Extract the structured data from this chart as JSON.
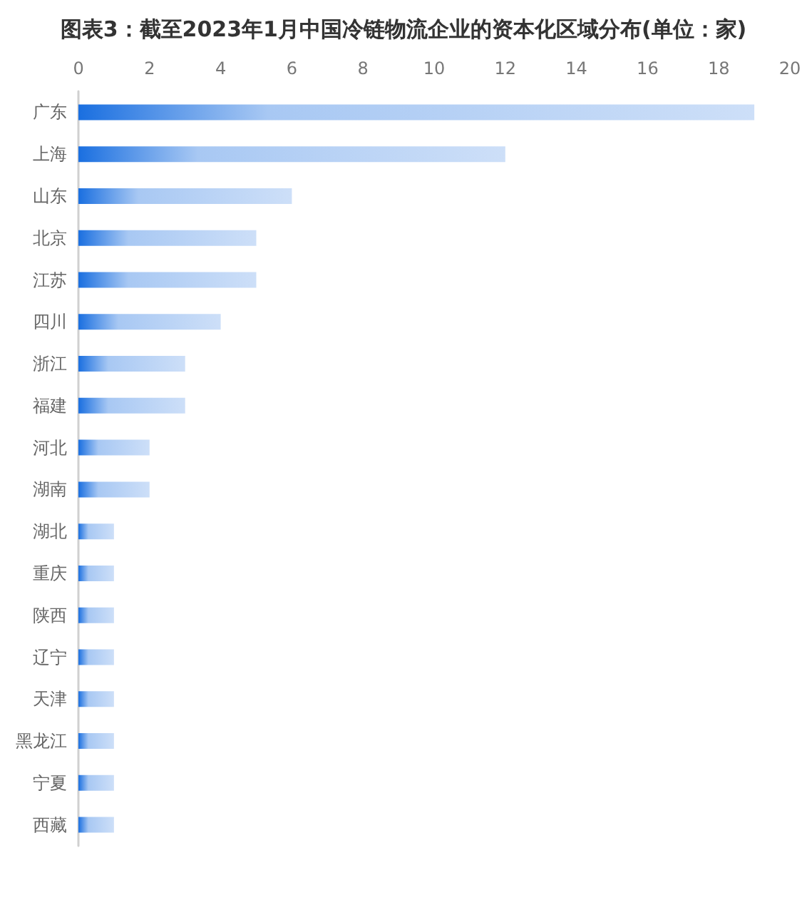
{
  "chart_data": {
    "type": "bar",
    "orientation": "horizontal",
    "title": "图表3：截至2023年1月中国冷链物流企业的资本化区域分布(单位：家)",
    "categories": [
      "广东",
      "上海",
      "山东",
      "北京",
      "江苏",
      "四川",
      "浙江",
      "福建",
      "河北",
      "湖南",
      "湖北",
      "重庆",
      "陕西",
      "辽宁",
      "天津",
      "黑龙江",
      "宁夏",
      "西藏"
    ],
    "values": [
      19,
      12,
      6,
      5,
      5,
      4,
      3,
      3,
      2,
      2,
      1,
      1,
      1,
      1,
      1,
      1,
      1,
      1
    ],
    "color": "#1a6fe0",
    "xlim": [
      0,
      20
    ],
    "xticks": [
      0,
      2,
      4,
      6,
      8,
      10,
      12,
      14,
      16,
      18,
      20
    ]
  }
}
